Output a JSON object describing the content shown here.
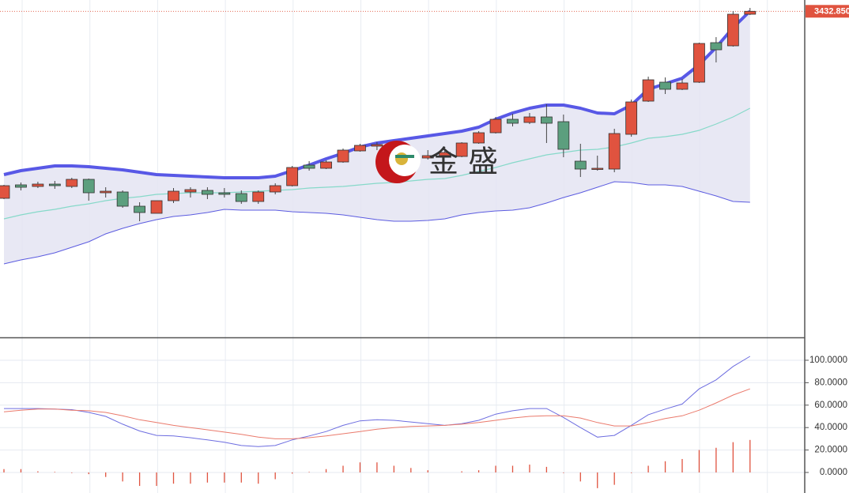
{
  "chart_data": [
    {
      "type": "candlestick",
      "ylim": [
        3226.5,
        3440
      ],
      "up_color": "#e0533f",
      "down_color": "#5c9f7e",
      "open": [
        3314.5,
        3323,
        3322,
        3323.5,
        3322,
        3326.5,
        3318,
        3318.5,
        3309.5,
        3305,
        3313,
        3318.5,
        3319.5,
        3318,
        3317.5,
        3312.5,
        3318.5,
        3322.5,
        3335.5,
        3333.5,
        3337.5,
        3344.5,
        3347.5,
        3347,
        3342,
        3340,
        3341.5,
        3341,
        3349.5,
        3356,
        3364.5,
        3362.5,
        3366,
        3363,
        3338,
        3333,
        3333,
        3355,
        3376,
        3388,
        3383.5,
        3388,
        3413,
        3411,
        3431
      ],
      "high": [
        3323,
        3324.5,
        3325,
        3325.5,
        3327.5,
        3327,
        3321.5,
        3319.5,
        3312,
        3313,
        3321,
        3321.5,
        3321.5,
        3321,
        3319.5,
        3319.5,
        3324,
        3335,
        3338,
        3338.5,
        3346,
        3349,
        3350,
        3350,
        3345,
        3345,
        3346,
        3350,
        3357,
        3366,
        3368,
        3368.5,
        3374,
        3367.5,
        3349,
        3341.5,
        3358.5,
        3377,
        3391.5,
        3391,
        3390,
        3413,
        3416.5,
        3433,
        3435
      ],
      "low": [
        3314,
        3319.5,
        3321,
        3320.5,
        3321,
        3313,
        3315,
        3308.5,
        3300,
        3305,
        3311.5,
        3315,
        3314,
        3315,
        3311,
        3311,
        3317,
        3322,
        3332,
        3333,
        3337,
        3344,
        3345,
        3340,
        3337.5,
        3339,
        3340.5,
        3340.5,
        3349,
        3355.5,
        3360,
        3361.5,
        3349.5,
        3340.5,
        3328,
        3332,
        3331,
        3353.5,
        3375.5,
        3380.5,
        3383,
        3387.5,
        3400.5,
        3410.5,
        3430.5
      ],
      "close": [
        3322.5,
        3321.5,
        3323.5,
        3322.5,
        3326.5,
        3318,
        3319,
        3309.5,
        3305.5,
        3313,
        3319,
        3320,
        3317,
        3317,
        3312.5,
        3318.5,
        3322.5,
        3334,
        3333.5,
        3337.5,
        3345,
        3348,
        3348.5,
        3341,
        3340,
        3341.5,
        3343.5,
        3349.5,
        3356,
        3364.5,
        3362,
        3366,
        3362,
        3345.5,
        3333,
        3333.5,
        3355.5,
        3375.5,
        3389.5,
        3383.5,
        3387.5,
        3412.5,
        3408.5,
        3431,
        3432.85
      ],
      "upper": {
        "color": "#5858e6",
        "values": [
          3329.5,
          3332,
          3333.5,
          3335,
          3335,
          3334.5,
          3333.5,
          3332.5,
          3331,
          3329.5,
          3329,
          3328.5,
          3328,
          3327.5,
          3327.5,
          3327.5,
          3328.5,
          3332,
          3335.5,
          3339.5,
          3343,
          3347,
          3349.5,
          3351,
          3352.5,
          3354,
          3355.5,
          3357,
          3359.5,
          3364.5,
          3368.5,
          3371.5,
          3373.5,
          3373.5,
          3371.5,
          3368.5,
          3368,
          3373.5,
          3383.5,
          3387,
          3390.5,
          3399,
          3410,
          3422.5,
          3433
        ]
      },
      "middle": {
        "color": "#86d9c9",
        "values": [
          3301.5,
          3304,
          3306,
          3307.5,
          3309.5,
          3311,
          3313,
          3314.5,
          3315.5,
          3317,
          3317.5,
          3318,
          3318,
          3318,
          3318.5,
          3319,
          3319.5,
          3320,
          3321,
          3321.5,
          3322,
          3323,
          3324,
          3324.5,
          3325.5,
          3326.5,
          3327,
          3329,
          3331.5,
          3334,
          3337,
          3339.5,
          3342,
          3343.5,
          3345,
          3345.5,
          3347,
          3349.5,
          3352.5,
          3353.5,
          3355,
          3357.5,
          3361.5,
          3366,
          3371.5
        ]
      },
      "lower": {
        "color": "#5b5be0",
        "values": [
          3273,
          3275.5,
          3277.5,
          3280,
          3283.5,
          3287,
          3292,
          3295.5,
          3298.5,
          3301,
          3303,
          3304,
          3305.5,
          3307.5,
          3307,
          3307,
          3307,
          3306,
          3305.5,
          3305,
          3304,
          3302.5,
          3301,
          3300,
          3300,
          3300.5,
          3301.5,
          3304,
          3305.5,
          3306.5,
          3307,
          3308.5,
          3311.5,
          3315,
          3318,
          3321.5,
          3325,
          3324.5,
          3323,
          3323,
          3322,
          3319,
          3316,
          3312.5,
          3312
        ]
      },
      "current_price": {
        "value": 3432.85,
        "label": "3432.850"
      },
      "watermark": "金 盛"
    },
    {
      "type": "indicator",
      "ylim": [
        -18.3,
        119.7
      ],
      "yticks": [
        {
          "value": 100,
          "label": "100.0000"
        },
        {
          "value": 80,
          "label": "80.0000"
        },
        {
          "value": 60,
          "label": "60.0000"
        },
        {
          "value": 40,
          "label": "40.0000"
        },
        {
          "value": 20,
          "label": "20.0000"
        },
        {
          "value": 0,
          "label": "0.0000"
        }
      ],
      "grid": true,
      "lines": [
        {
          "color": "#6d6de0",
          "values": [
            57,
            57,
            57,
            56.5,
            56,
            53.5,
            50,
            43,
            37,
            33,
            32.5,
            31,
            29,
            27,
            24,
            23,
            24,
            29,
            32.5,
            36.5,
            42,
            46,
            47,
            46.5,
            45,
            43.5,
            42,
            43.5,
            46.5,
            52,
            55,
            57,
            57,
            49,
            40,
            31.5,
            33,
            42,
            51.5,
            56.5,
            61,
            74.5,
            82.5,
            94.5,
            103.5
          ]
        },
        {
          "color": "#ea7a6c",
          "values": [
            54,
            55.5,
            56.5,
            56.5,
            55.5,
            55,
            53.5,
            50.5,
            47,
            44.5,
            42,
            40,
            38,
            36,
            34,
            31.5,
            30,
            30,
            31,
            32.5,
            34.5,
            36.5,
            38.5,
            40,
            41,
            41.5,
            42,
            43,
            44.5,
            46.5,
            48.5,
            50,
            50.5,
            50.5,
            48.5,
            44.5,
            41.5,
            41.5,
            44.5,
            48,
            50.5,
            55.5,
            62,
            69,
            74.5
          ]
        }
      ],
      "bars": {
        "color": "#e0533f",
        "values": [
          3,
          3,
          1,
          0.5,
          -0.5,
          -1.5,
          -4,
          -8,
          -12,
          -12,
          -10,
          -10,
          -9,
          -9,
          -9,
          -10,
          -6,
          -1,
          0.5,
          3,
          6,
          9,
          9,
          6,
          4,
          2,
          0,
          1,
          2,
          6,
          6,
          7,
          5,
          -0.5,
          -8,
          -14,
          -11,
          -0.5,
          6,
          10,
          12,
          20,
          22,
          27,
          29
        ]
      }
    }
  ]
}
